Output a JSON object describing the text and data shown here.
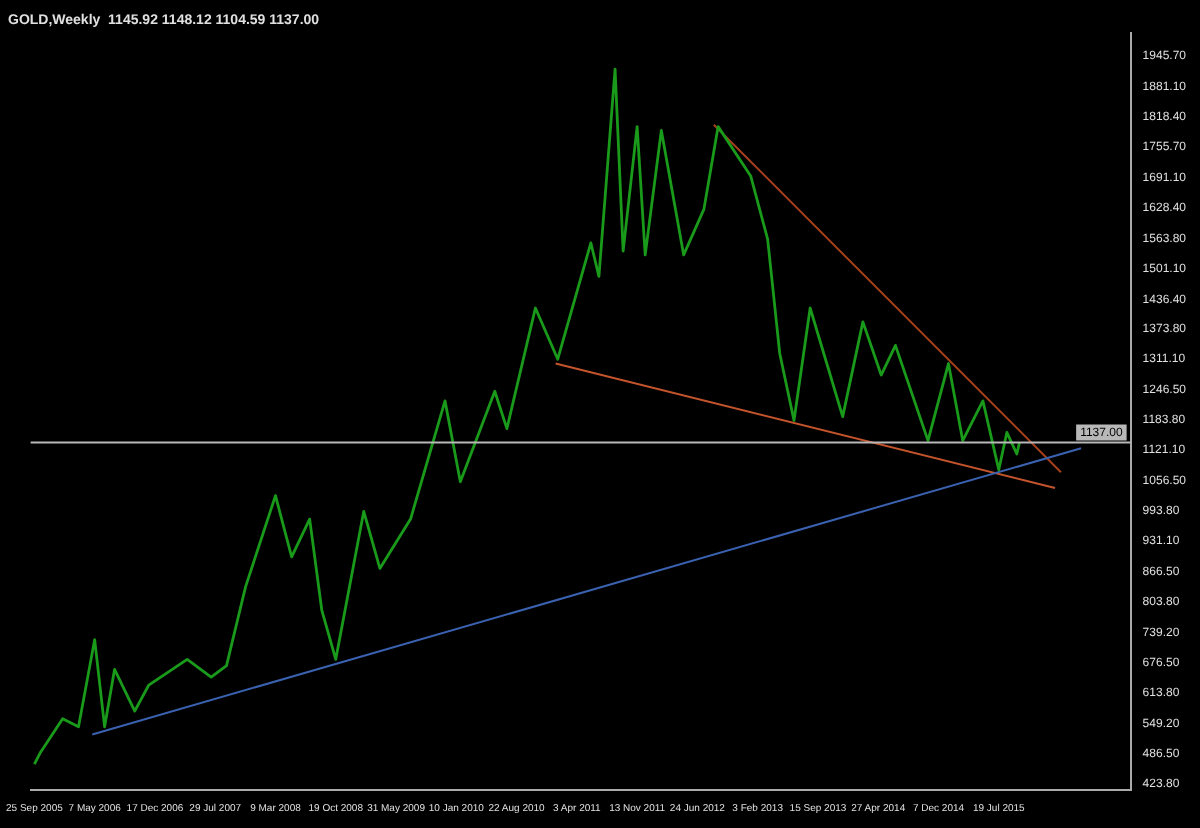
{
  "chart_data": {
    "type": "line",
    "title": "GOLD,Weekly  1145.92 1148.12 1104.59 1137.00",
    "series": [
      {
        "type": "line",
        "color": "#1a9a1a",
        "x": [
          "2005-09-25",
          "2005-10-18",
          "2006-01-08",
          "2006-03-08",
          "2006-05-07",
          "2006-06-13",
          "2006-07-20",
          "2006-10-03",
          "2006-11-24",
          "2007-04-16",
          "2007-07-14",
          "2007-09-09",
          "2007-11-19",
          "2008-03-09",
          "2008-05-08",
          "2008-07-14",
          "2008-08-28",
          "2008-10-19",
          "2009-01-31",
          "2009-04-01",
          "2009-07-24",
          "2009-11-29",
          "2010-01-25",
          "2010-06-02",
          "2010-07-17",
          "2010-10-31",
          "2011-01-22",
          "2011-05-25",
          "2011-06-24",
          "2011-08-23",
          "2011-09-22",
          "2011-11-13",
          "2011-12-13",
          "2012-02-11",
          "2012-05-04",
          "2012-07-18",
          "2012-09-09",
          "2013-01-08",
          "2013-03-12",
          "2013-04-26",
          "2013-06-18",
          "2013-08-17",
          "2013-12-16",
          "2014-03-01",
          "2014-05-08",
          "2014-06-30",
          "2014-10-29",
          "2015-01-13",
          "2015-03-07",
          "2015-05-21",
          "2015-07-19",
          "2015-08-18",
          "2015-09-24",
          "2015-10-04"
        ],
        "values": [
          465,
          490,
          560,
          543,
          725,
          543,
          663,
          576,
          630,
          684,
          647,
          671,
          836,
          1026,
          898,
          977,
          787,
          684,
          993,
          874,
          977,
          1224,
          1055,
          1244,
          1166,
          1418,
          1311,
          1554,
          1484,
          1917,
          1537,
          1797,
          1529,
          1789,
          1529,
          1624,
          1797,
          1694,
          1562,
          1323,
          1183,
          1418,
          1191,
          1389,
          1278,
          1340,
          1141,
          1302,
          1141,
          1224,
          1080,
          1158,
          1113,
          1137
        ]
      },
      {
        "type": "line",
        "color": "#3a62b0",
        "x": [
          "2006-04-28",
          "2016-05-20"
        ],
        "values": [
          527,
          1125
        ]
      },
      {
        "type": "line",
        "color": "#c4542c",
        "x": [
          "2011-01-14",
          "2016-02-13"
        ],
        "values": [
          1302,
          1042
        ]
      },
      {
        "type": "line",
        "color": "#a8401c",
        "x": [
          "2012-08-24",
          "2016-03-06"
        ],
        "values": [
          1801,
          1075
        ]
      }
    ],
    "xlim": [
      "2005-09-11",
      "2016-11-20"
    ],
    "xticks": [
      {
        "value": "2005-09-25",
        "label": "25 Sep 2005"
      },
      {
        "value": "2006-05-07",
        "label": "7 May 2006"
      },
      {
        "value": "2006-12-17",
        "label": "17 Dec 2006"
      },
      {
        "value": "2007-07-29",
        "label": "29 Jul 2007"
      },
      {
        "value": "2008-03-09",
        "label": "9 Mar 2008"
      },
      {
        "value": "2008-10-19",
        "label": "19 Oct 2008"
      },
      {
        "value": "2009-05-31",
        "label": "31 May 2009"
      },
      {
        "value": "2010-01-10",
        "label": "10 Jan 2010"
      },
      {
        "value": "2010-08-22",
        "label": "22 Aug 2010"
      },
      {
        "value": "2011-04-03",
        "label": "3 Apr 2011"
      },
      {
        "value": "2011-11-13",
        "label": "13 Nov 2011"
      },
      {
        "value": "2012-06-24",
        "label": "24 Jun 2012"
      },
      {
        "value": "2013-02-03",
        "label": "3 Feb 2013"
      },
      {
        "value": "2013-09-15",
        "label": "15 Sep 2013"
      },
      {
        "value": "2014-04-27",
        "label": "27 Apr 2014"
      },
      {
        "value": "2014-12-07",
        "label": "7 Dec 2014"
      },
      {
        "value": "2015-07-19",
        "label": "19 Jul 2015"
      }
    ],
    "ylim": [
      411,
      1993
    ],
    "yticks": [
      {
        "value": 1945.7,
        "label": "1945.70"
      },
      {
        "value": 1881.1,
        "label": "1881.10"
      },
      {
        "value": 1818.4,
        "label": "1818.40"
      },
      {
        "value": 1755.7,
        "label": "1755.70"
      },
      {
        "value": 1691.1,
        "label": "1691.10"
      },
      {
        "value": 1628.4,
        "label": "1628.40"
      },
      {
        "value": 1563.8,
        "label": "1563.80"
      },
      {
        "value": 1501.1,
        "label": "1501.10"
      },
      {
        "value": 1436.4,
        "label": "1436.40"
      },
      {
        "value": 1373.8,
        "label": "1373.80"
      },
      {
        "value": 1311.1,
        "label": "1311.10"
      },
      {
        "value": 1246.5,
        "label": "1246.50"
      },
      {
        "value": 1183.8,
        "label": "1183.80"
      },
      {
        "value": 1121.1,
        "label": "1121.10"
      },
      {
        "value": 1056.5,
        "label": "1056.50"
      },
      {
        "value": 993.8,
        "label": "993.80"
      },
      {
        "value": 931.1,
        "label": "931.10"
      },
      {
        "value": 866.5,
        "label": "866.50"
      },
      {
        "value": 803.8,
        "label": "803.80"
      },
      {
        "value": 739.2,
        "label": "739.20"
      },
      {
        "value": 676.5,
        "label": "676.50"
      },
      {
        "value": 613.8,
        "label": "613.80"
      },
      {
        "value": 549.2,
        "label": "549.20"
      },
      {
        "value": 486.5,
        "label": "486.50"
      },
      {
        "value": 423.8,
        "label": "423.80"
      }
    ],
    "ref_lines": [
      {
        "axis": "y",
        "value": 1137,
        "label": "1137.00",
        "color": "#b8b8b8"
      }
    ],
    "grid": false,
    "legend": false,
    "marker": "none",
    "line_style": "solid"
  }
}
